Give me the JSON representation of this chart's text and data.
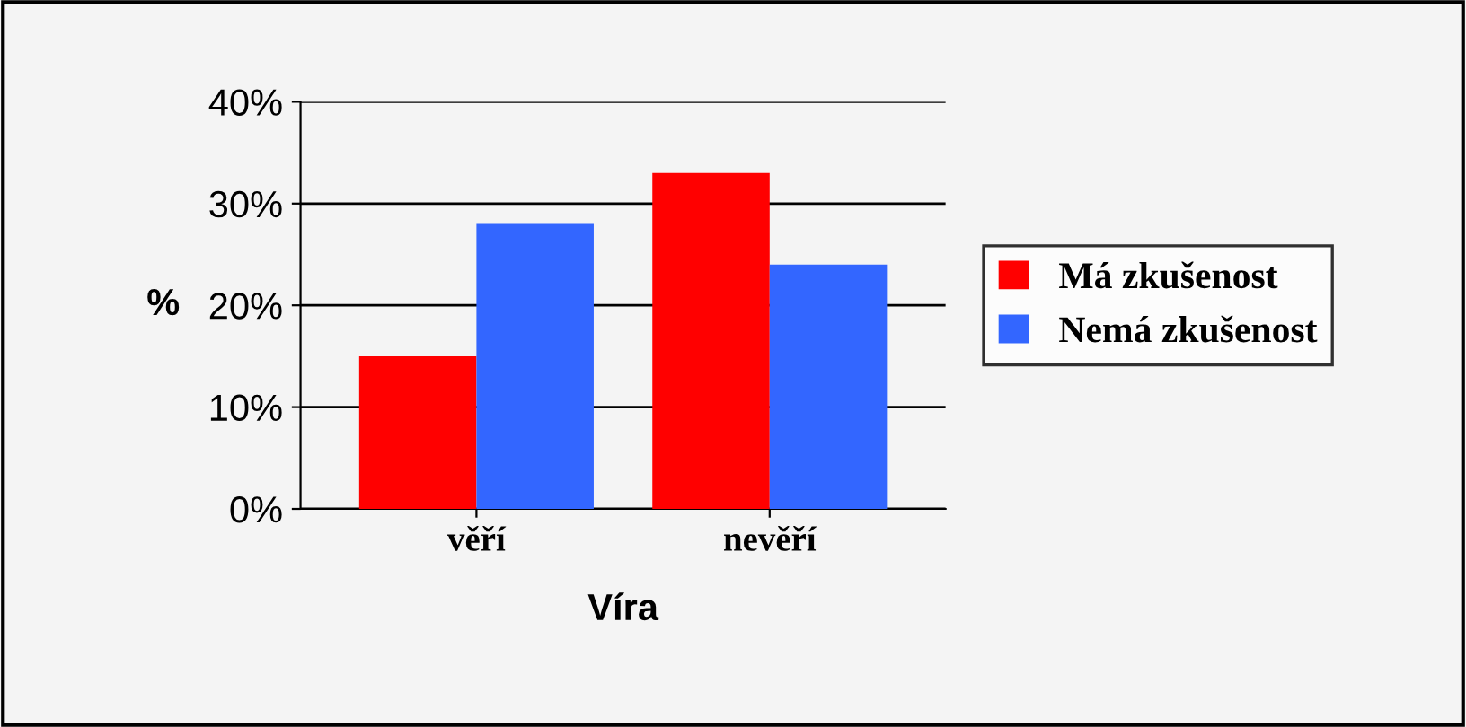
{
  "chart_data": {
    "type": "bar",
    "xlabel": "Víra",
    "ylabel": "%",
    "categories": [
      "věří",
      "nevěří"
    ],
    "series": [
      {
        "name": "Má zkušenost",
        "color": "#ff0000",
        "values": [
          15,
          33
        ]
      },
      {
        "name": "Nemá zkušenost",
        "color": "#3366ff",
        "values": [
          28,
          24
        ]
      }
    ],
    "ylim": [
      0,
      40
    ],
    "yticks": [
      {
        "value": 0,
        "label": "0%"
      },
      {
        "value": 10,
        "label": "10%"
      },
      {
        "value": 20,
        "label": "20%"
      },
      {
        "value": 30,
        "label": "30%"
      },
      {
        "value": 40,
        "label": "40%"
      }
    ],
    "grid": "y",
    "legend": "right"
  }
}
